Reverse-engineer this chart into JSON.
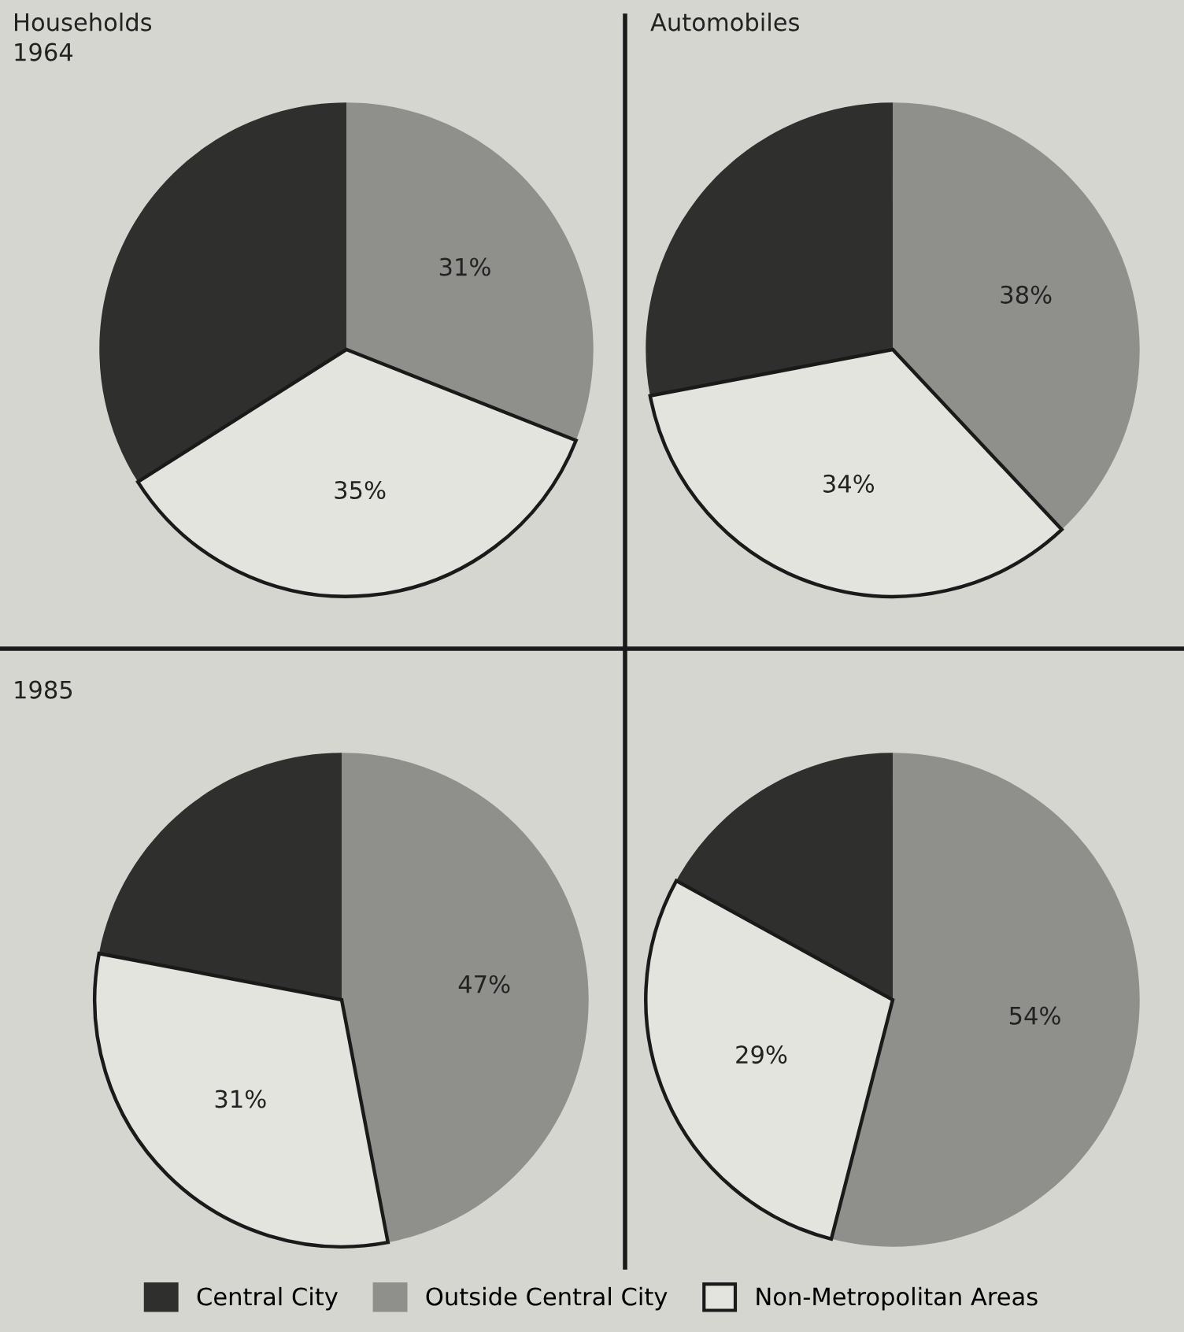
{
  "chart_data": [
    {
      "type": "pie",
      "title": "Households",
      "subtitle": "1964",
      "categories": [
        "Central City",
        "Outside Central City",
        "Non-Metropolitan Areas"
      ],
      "values": [
        34,
        31,
        35
      ],
      "colors": [
        "#2f2f2d",
        "#8f8f8c",
        "#e4e4df"
      ],
      "value_labels": [
        null,
        "31%",
        "35%"
      ],
      "legend": "bottom"
    },
    {
      "type": "pie",
      "title": "Automobiles",
      "categories": [
        null,
        null,
        null
      ],
      "values": [
        28,
        38,
        34
      ],
      "colors": [
        "#2f2f2d",
        "#8f8f8c",
        "#e4e4df"
      ],
      "value_labels": [
        null,
        "38%",
        "34%"
      ]
    },
    {
      "type": "pie",
      "title": "1985",
      "categories": [
        null,
        null,
        null
      ],
      "values": [
        22,
        47,
        31
      ],
      "colors": [
        "#2f2f2d",
        "#8f8f8c",
        "#e4e4df"
      ],
      "value_labels": [
        null,
        "47%",
        "31%"
      ]
    },
    {
      "type": "pie",
      "categories": [
        null,
        null,
        null
      ],
      "values": [
        17,
        54,
        29
      ],
      "colors": [
        "#2f2f2d",
        "#8f8f8c",
        "#e4e4df"
      ],
      "value_labels": [
        null,
        "54%",
        "29%"
      ]
    }
  ]
}
